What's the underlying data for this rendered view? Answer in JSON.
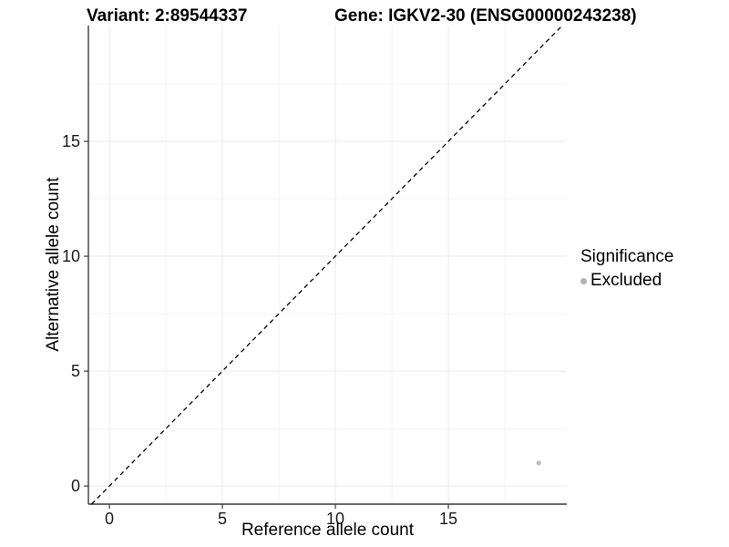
{
  "header": {
    "title_left": "Variant: 2:89544337",
    "title_right": "Gene: IGKV2-30 (ENSG00000243238)"
  },
  "axes": {
    "x_label": "Reference allele count",
    "y_label": "Alternative allele count"
  },
  "legend": {
    "title": "Significance",
    "position": "right",
    "items": [
      {
        "label": "Excluded",
        "color": "#b3b3b3"
      }
    ]
  },
  "chart_data": {
    "type": "scatter",
    "title": "Variant: 2:89544337  Gene: IGKV2-30 (ENSG00000243238)",
    "xlabel": "Reference allele count",
    "ylabel": "Alternative allele count",
    "xlim": [
      -0.93,
      20.24
    ],
    "ylim": [
      -0.79,
      20.04
    ],
    "xticks": [
      0,
      5,
      10,
      15
    ],
    "yticks": [
      0,
      5,
      10,
      15
    ],
    "x_minor": [
      2.5,
      7.5,
      12.5,
      17.5
    ],
    "y_minor": [
      2.5,
      7.5,
      12.5,
      17.5
    ],
    "grid": true,
    "grid_major_color": "#eaeaea",
    "grid_minor_color": "#f3f3f3",
    "axis_line_color": "#3a3a3a",
    "tick_label_color": "#1a1a1a",
    "identity_line": {
      "slope": 1,
      "intercept": 0,
      "linetype": "dashed",
      "color": "#000000"
    },
    "series": [
      {
        "name": "Excluded",
        "color": "#bdbdbd",
        "points": [
          {
            "x": 19,
            "y": 1
          }
        ]
      }
    ]
  }
}
